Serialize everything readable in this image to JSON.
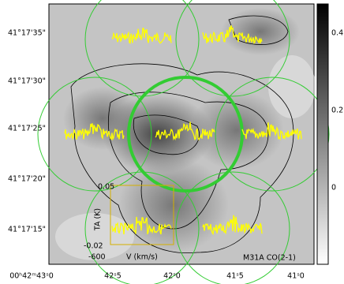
{
  "y_axis": {
    "labels": [
      "41°17'35\"",
      "41°17'30\"",
      "41°17'25\"",
      "41°17'20\"",
      "41°17'15\""
    ]
  },
  "x_axis": {
    "labels": [
      "00ʰ42ᵐ43ˢ0",
      "42ˢ5",
      "42ˢ0",
      "41ˢ5",
      "41ˢ0"
    ]
  },
  "colorbar": {
    "ticks": [
      "0.4",
      "0.2",
      "0"
    ]
  },
  "annotation": "M31A   CO(2-1)",
  "inset": {
    "y_max": "0.05",
    "y_min": "-0.02",
    "y_label": "TA (K)",
    "x_min": "-600",
    "x_label": "V (km/s)"
  }
}
